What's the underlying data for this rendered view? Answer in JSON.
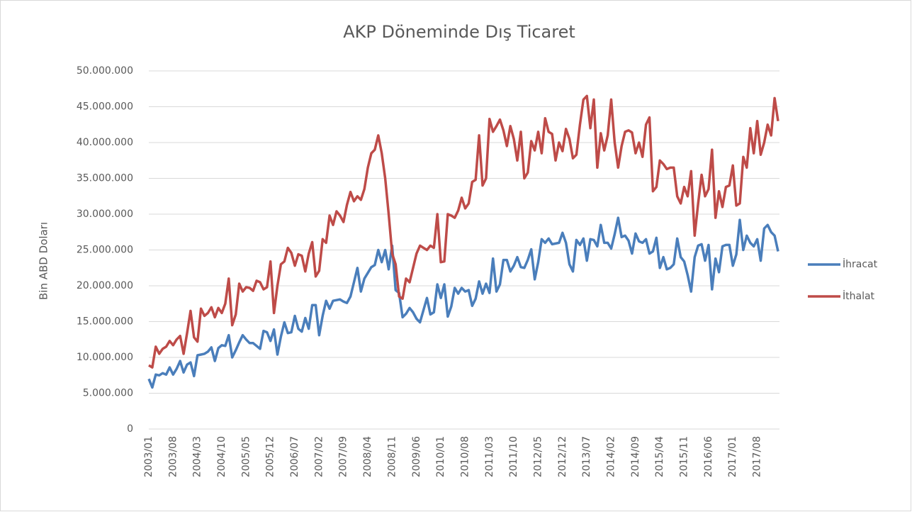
{
  "chart_data": {
    "type": "line",
    "title": "AKP Döneminde Dış Ticaret",
    "y_label": "Bin ABD Doları",
    "categories": [
      "2003/01",
      null,
      null,
      null,
      null,
      null,
      null,
      "2003/08",
      null,
      null,
      null,
      null,
      null,
      null,
      "2004/03",
      null,
      null,
      null,
      null,
      null,
      null,
      "2004/10",
      null,
      null,
      null,
      null,
      null,
      null,
      "2005/05",
      null,
      null,
      null,
      null,
      null,
      null,
      "2005/12",
      null,
      null,
      null,
      null,
      null,
      null,
      "2006/07",
      null,
      null,
      null,
      null,
      null,
      null,
      "2007/02",
      null,
      null,
      null,
      null,
      null,
      null,
      "2007/09",
      null,
      null,
      null,
      null,
      null,
      null,
      "2008/04",
      null,
      null,
      null,
      null,
      null,
      null,
      "2008/11",
      null,
      null,
      null,
      null,
      null,
      null,
      "2009/06",
      null,
      null,
      null,
      null,
      null,
      null,
      "2010/01",
      null,
      null,
      null,
      null,
      null,
      null,
      "2010/08",
      null,
      null,
      null,
      null,
      null,
      null,
      "2011/03",
      null,
      null,
      null,
      null,
      null,
      null,
      "2011/10",
      null,
      null,
      null,
      null,
      null,
      null,
      "2012/05",
      null,
      null,
      null,
      null,
      null,
      null,
      "2012/12",
      null,
      null,
      null,
      null,
      null,
      null,
      "2013/07",
      null,
      null,
      null,
      null,
      null,
      null,
      "2014/02",
      null,
      null,
      null,
      null,
      null,
      null,
      "2014/09",
      null,
      null,
      null,
      null,
      null,
      null,
      "2015/04",
      null,
      null,
      null,
      null,
      null,
      null,
      "2015/11",
      null,
      null,
      null,
      null,
      null,
      null,
      "2016/06",
      null,
      null,
      null,
      null,
      null,
      null,
      "2017/01",
      null,
      null,
      null,
      null,
      null,
      null,
      "2017/08",
      null,
      null,
      null,
      null,
      null,
      null
    ],
    "series": [
      {
        "name": "İhracat",
        "color": "#4a7ebb",
        "values": [
          7000000,
          5800000,
          7600000,
          7500000,
          7800000,
          7600000,
          8600000,
          7600000,
          8400000,
          9500000,
          7900000,
          9000000,
          9300000,
          7400000,
          10300000,
          10400000,
          10500000,
          10800000,
          11400000,
          9500000,
          11300000,
          11700000,
          11600000,
          13100000,
          10000000,
          11000000,
          12100000,
          13100000,
          12500000,
          12000000,
          12000000,
          11600000,
          11200000,
          13700000,
          13500000,
          12300000,
          13900000,
          10400000,
          12900000,
          14900000,
          13400000,
          13500000,
          15800000,
          14000000,
          13600000,
          15500000,
          14000000,
          17300000,
          17300000,
          13100000,
          15800000,
          17900000,
          16800000,
          17900000,
          18000000,
          18100000,
          17800000,
          17600000,
          18500000,
          20500000,
          22500000,
          19200000,
          21000000,
          21800000,
          22600000,
          22900000,
          25000000,
          23300000,
          25000000,
          22300000,
          25600000,
          19400000,
          19000000,
          15600000,
          16100000,
          16900000,
          16300000,
          15400000,
          14900000,
          16600000,
          18300000,
          16000000,
          16300000,
          20200000,
          18300000,
          20200000,
          15700000,
          17100000,
          19700000,
          18900000,
          19700000,
          19200000,
          19400000,
          17200000,
          18200000,
          20600000,
          18900000,
          20300000,
          19000000,
          23800000,
          19200000,
          20200000,
          23600000,
          23600000,
          22000000,
          22800000,
          24000000,
          22600000,
          22500000,
          23600000,
          25100000,
          20900000,
          23300000,
          26500000,
          26000000,
          26600000,
          25800000,
          25900000,
          26000000,
          27400000,
          26000000,
          23000000,
          22000000,
          26400000,
          25700000,
          26600000,
          23500000,
          26500000,
          26400000,
          25500000,
          28500000,
          26000000,
          26000000,
          25200000,
          27200000,
          29500000,
          26800000,
          27000000,
          26300000,
          24500000,
          27300000,
          26200000,
          26000000,
          26500000,
          24500000,
          24800000,
          26700000,
          22500000,
          24000000,
          22300000,
          22500000,
          23000000,
          26600000,
          24000000,
          23400000,
          21500000,
          19200000,
          24000000,
          25600000,
          25800000,
          23500000,
          25700000,
          19500000,
          23800000,
          21900000,
          25500000,
          25700000,
          25700000,
          22800000,
          24400000,
          29200000,
          25000000,
          27000000,
          26000000,
          25500000,
          26500000,
          23500000,
          28000000,
          28500000,
          27500000,
          27000000,
          24800000
        ]
      },
      {
        "name": "İthalat",
        "color": "#be4b48",
        "values": [
          8900000,
          8600000,
          11500000,
          10500000,
          11200000,
          11500000,
          12300000,
          11700000,
          12500000,
          13000000,
          10500000,
          13400000,
          16500000,
          12800000,
          12200000,
          16800000,
          15800000,
          16200000,
          17000000,
          15600000,
          16900000,
          16200000,
          17500000,
          21000000,
          14500000,
          16000000,
          20300000,
          19200000,
          19800000,
          19700000,
          19300000,
          20700000,
          20500000,
          19500000,
          19800000,
          23400000,
          16200000,
          20000000,
          23000000,
          23400000,
          25300000,
          24600000,
          22800000,
          24400000,
          24200000,
          22000000,
          24500000,
          26100000,
          21300000,
          22100000,
          26500000,
          26000000,
          29800000,
          28500000,
          30400000,
          29800000,
          28900000,
          31300000,
          33100000,
          31800000,
          32500000,
          32000000,
          33500000,
          36500000,
          38500000,
          39000000,
          41000000,
          38500000,
          35000000,
          30000000,
          24500000,
          23000000,
          18500000,
          18200000,
          21000000,
          20500000,
          22500000,
          24500000,
          25600000,
          25300000,
          25000000,
          25600000,
          25300000,
          30000000,
          23300000,
          23400000,
          30000000,
          29800000,
          29500000,
          30500000,
          32300000,
          30800000,
          31500000,
          34500000,
          34800000,
          41000000,
          34000000,
          35000000,
          43300000,
          41500000,
          42300000,
          43200000,
          41700000,
          39500000,
          42300000,
          40500000,
          37500000,
          41500000,
          35000000,
          35800000,
          40200000,
          38900000,
          41500000,
          38500000,
          43400000,
          41500000,
          41200000,
          37500000,
          40000000,
          38800000,
          41900000,
          40500000,
          37800000,
          38300000,
          42500000,
          46000000,
          46500000,
          42000000,
          46000000,
          36500000,
          41300000,
          38900000,
          41000000,
          46000000,
          40000000,
          36500000,
          39500000,
          41500000,
          41700000,
          41400000,
          38500000,
          40000000,
          38000000,
          42500000,
          43500000,
          33200000,
          33800000,
          37500000,
          37000000,
          36300000,
          36500000,
          36500000,
          32500000,
          31500000,
          33800000,
          32500000,
          36000000,
          27000000,
          31500000,
          35500000,
          32500000,
          33500000,
          39000000,
          29500000,
          33200000,
          31000000,
          33800000,
          34000000,
          36800000,
          31200000,
          31500000,
          38000000,
          36500000,
          42000000,
          38500000,
          43000000,
          38300000,
          40000000,
          42500000,
          41000000,
          46200000,
          43000000
        ]
      }
    ],
    "ylim": [
      0,
      50000000
    ],
    "yticks": [
      0,
      {
        "value": 5000000,
        "label": "5.000.000"
      },
      {
        "value": 10000000,
        "label": "10.000.000"
      },
      {
        "value": 15000000,
        "label": "15.000.000"
      },
      {
        "value": 20000000,
        "label": "20.000.000"
      },
      {
        "value": 25000000,
        "label": "25.000.000"
      },
      {
        "value": 30000000,
        "label": "30.000.000"
      },
      {
        "value": 35000000,
        "label": "35.000.000"
      },
      {
        "value": 40000000,
        "label": "40.000.000"
      },
      {
        "value": 45000000,
        "label": "45.000.000"
      },
      {
        "value": 50000000,
        "label": "50.000.000"
      }
    ],
    "grid": true,
    "legend": "right"
  }
}
